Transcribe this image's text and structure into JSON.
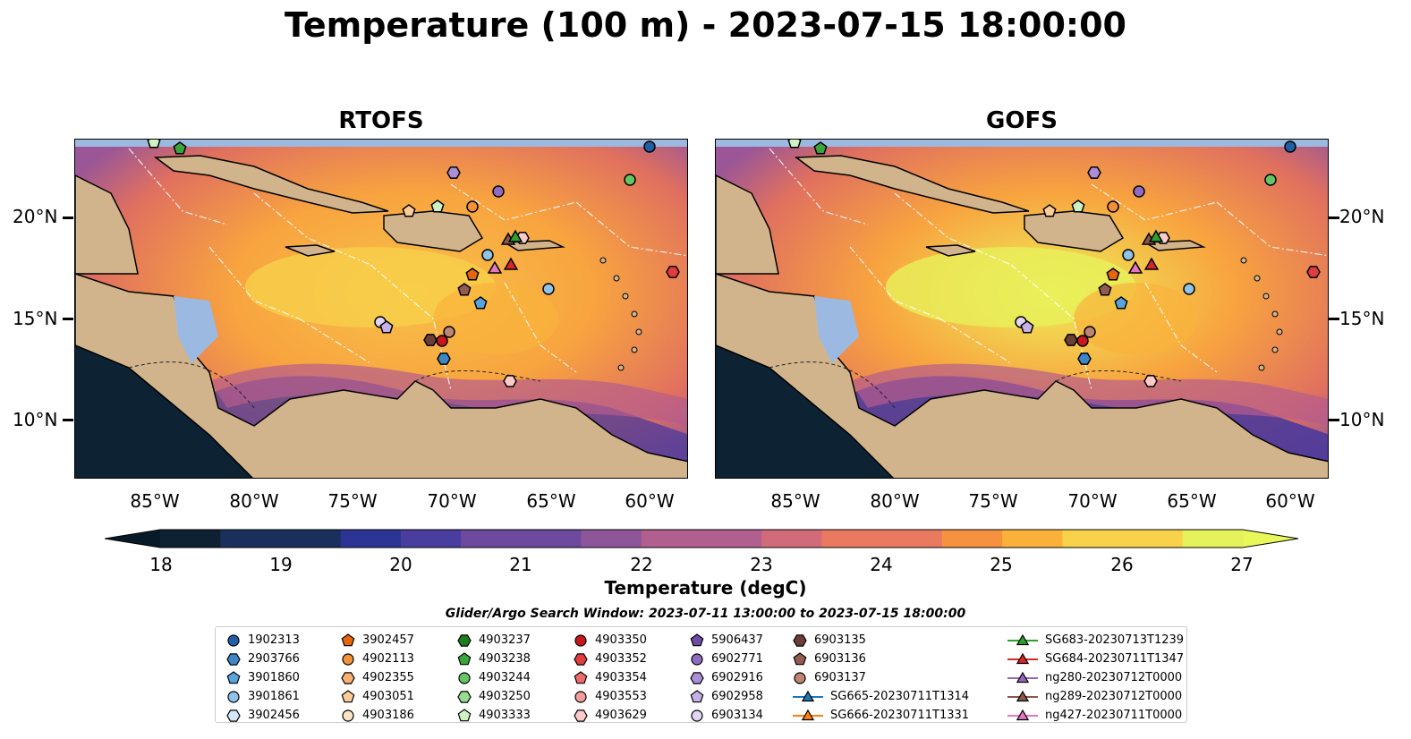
{
  "title": "Temperature (100 m) - 2023-07-15 18:00:00",
  "panels": [
    {
      "name": "RTOFS"
    },
    {
      "name": "GOFS"
    }
  ],
  "lat_labels": [
    "20°N",
    "15°N",
    "10°N"
  ],
  "lon_labels": [
    "85°W",
    "80°W",
    "75°W",
    "70°W",
    "65°W",
    "60°W"
  ],
  "colorbar": {
    "ticks": [
      "18",
      "19",
      "20",
      "21",
      "22",
      "23",
      "24",
      "25",
      "26",
      "27"
    ],
    "label": "Temperature (degC)",
    "range": [
      18,
      27
    ],
    "extend": "both",
    "colormap": [
      "#0d2133",
      "#1a2f5c",
      "#2c3595",
      "#4a3da0",
      "#6d4a9e",
      "#8f5599",
      "#b15f8e",
      "#d16b7a",
      "#e97a60",
      "#f6923f",
      "#fbb03a",
      "#f7d24a",
      "#e6f25c"
    ]
  },
  "search_window": "Glider/Argo Search Window: 2023-07-11 13:00:00 to 2023-07-15 18:00:00",
  "legend": {
    "columns": [
      [
        {
          "label": "1902313",
          "marker": "circle",
          "color": "#1f5fa6"
        },
        {
          "label": "2903766",
          "marker": "hexagon",
          "color": "#3f86c4"
        },
        {
          "label": "3901860",
          "marker": "pentagon",
          "color": "#5aa4de"
        },
        {
          "label": "3901861",
          "marker": "circle",
          "color": "#8fc3ea"
        },
        {
          "label": "3902456",
          "marker": "hexagon",
          "color": "#d4e9f8"
        }
      ],
      [
        {
          "label": "3902457",
          "marker": "pentagon",
          "color": "#e8650f"
        },
        {
          "label": "4902113",
          "marker": "circle",
          "color": "#f39138"
        },
        {
          "label": "4902355",
          "marker": "hexagon",
          "color": "#f8b070"
        },
        {
          "label": "4903051",
          "marker": "pentagon",
          "color": "#fbcc9a"
        },
        {
          "label": "4903186",
          "marker": "circle",
          "color": "#fde3c5"
        }
      ],
      [
        {
          "label": "4903237",
          "marker": "hexagon",
          "color": "#1e7d22"
        },
        {
          "label": "4903238",
          "marker": "pentagon",
          "color": "#3aa53a"
        },
        {
          "label": "4903244",
          "marker": "circle",
          "color": "#63c663"
        },
        {
          "label": "4903250",
          "marker": "hexagon",
          "color": "#98dd8f"
        },
        {
          "label": "4903333",
          "marker": "pentagon",
          "color": "#cff2c4"
        }
      ],
      [
        {
          "label": "4903350",
          "marker": "circle",
          "color": "#c8171e"
        },
        {
          "label": "4903352",
          "marker": "hexagon",
          "color": "#e13d3d"
        },
        {
          "label": "4903354",
          "marker": "pentagon",
          "color": "#ef6b6b"
        },
        {
          "label": "4903553",
          "marker": "circle",
          "color": "#f79c9c"
        },
        {
          "label": "4903629",
          "marker": "hexagon",
          "color": "#fccaca"
        }
      ],
      [
        {
          "label": "5906437",
          "marker": "pentagon",
          "color": "#6f4aa6"
        },
        {
          "label": "6902771",
          "marker": "circle",
          "color": "#8e6cc2"
        },
        {
          "label": "6902916",
          "marker": "hexagon",
          "color": "#ab8fd6"
        },
        {
          "label": "6902958",
          "marker": "pentagon",
          "color": "#c6b1e6"
        },
        {
          "label": "6903134",
          "marker": "circle",
          "color": "#e2d4f4"
        }
      ],
      [
        {
          "label": "6903135",
          "marker": "hexagon",
          "color": "#6b3f36"
        },
        {
          "label": "6903136",
          "marker": "pentagon",
          "color": "#935c50"
        },
        {
          "label": "6903137",
          "marker": "circle",
          "color": "#bd8674"
        },
        {
          "label": "SG665-20230711T1314",
          "marker": "triangle-line",
          "color": "#1f77b4"
        },
        {
          "label": "SG666-20230711T1331",
          "marker": "triangle-line",
          "color": "#ff7f0e"
        }
      ],
      [
        {
          "label": "SG683-20230713T1239",
          "marker": "triangle-line",
          "color": "#2ca02c"
        },
        {
          "label": "SG684-20230711T1347",
          "marker": "triangle-line",
          "color": "#d62728"
        },
        {
          "label": "ng280-20230712T0000",
          "marker": "triangle-line",
          "color": "#9467bd"
        },
        {
          "label": "ng289-20230712T0000",
          "marker": "triangle-line",
          "color": "#8c564b"
        },
        {
          "label": "ng427-20230711T0000",
          "marker": "triangle-line",
          "color": "#e377c2"
        }
      ]
    ]
  },
  "map_colors": {
    "land": "#d2b48c",
    "water_lakes": "#9cb9e1",
    "deep": "#0e2233"
  }
}
